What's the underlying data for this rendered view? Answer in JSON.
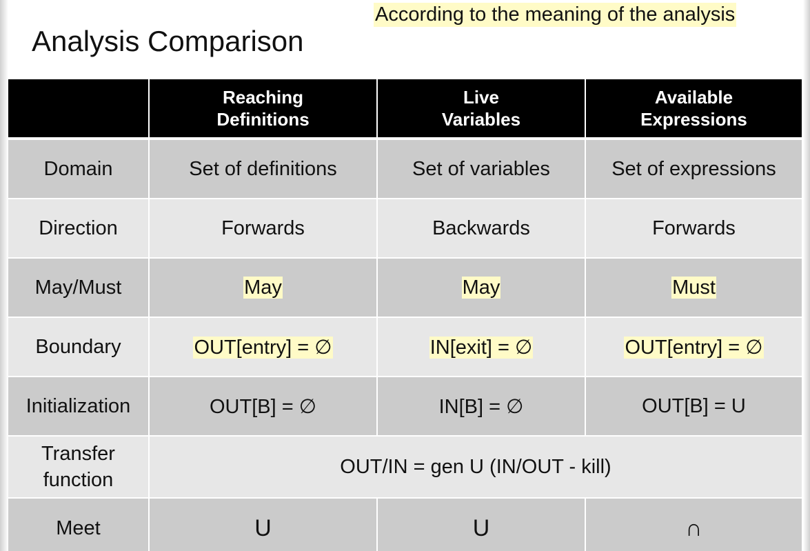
{
  "title": "Analysis Comparison",
  "note": "According to the meaning of the analysis",
  "table": {
    "headers": {
      "h0": "",
      "h1_line1": "Reaching",
      "h1_line2": "Definitions",
      "h2_line1": "Live",
      "h2_line2": "Variables",
      "h3_line1": "Available",
      "h3_line2": "Expressions"
    },
    "domain": {
      "label": "Domain",
      "rd": "Set of definitions",
      "lv": "Set of variables",
      "ae": "Set of expressions"
    },
    "direction": {
      "label": "Direction",
      "rd": "Forwards",
      "lv": "Backwards",
      "ae": "Forwards"
    },
    "maymust": {
      "label": "May/Must",
      "rd": "May",
      "lv": "May",
      "ae": "Must"
    },
    "boundary": {
      "label": "Boundary",
      "rd": "OUT[entry] = ∅",
      "lv": "IN[exit] = ∅",
      "ae": "OUT[entry] = ∅"
    },
    "initialization": {
      "label": "Initialization",
      "rd": "OUT[B] = ∅",
      "lv": "IN[B] = ∅",
      "ae": "OUT[B] = U"
    },
    "transfer": {
      "label_line1": "Transfer",
      "label_line2": "function",
      "value": "OUT/IN = gen U (IN/OUT - kill)"
    },
    "meet": {
      "label": "Meet",
      "rd": "U",
      "lv": "U",
      "ae": "∩"
    }
  },
  "colors": {
    "header_bg": "#000000",
    "row_dark": "#cbcbcb",
    "row_light": "#e7e7e7",
    "highlight": "#fffbc7"
  }
}
